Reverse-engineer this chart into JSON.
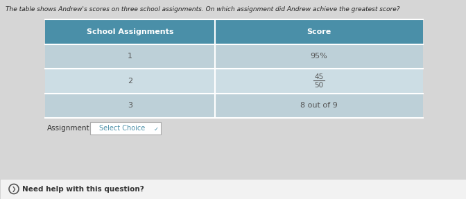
{
  "title": "The table shows Andrew's scores on three school assignments. On which assignment did Andrew achieve the greatest score?",
  "header_col1": "School Assignments",
  "header_col2": "Score",
  "rows": [
    [
      "1",
      "95%"
    ],
    [
      "2",
      "45/50"
    ],
    [
      "3",
      "8 out of 9"
    ]
  ],
  "header_bg": "#4a8fa8",
  "row_bg_odd": "#bdd0d8",
  "row_bg_even": "#ccdde4",
  "border_color": "#ffffff",
  "header_text_color": "#ffffff",
  "cell_text_color": "#555555",
  "assignment_label": "Assignment",
  "select_choice_label": "Select Choice",
  "need_help_label": "Need help with this question?",
  "bg_color": "#d6d6d6",
  "bottom_bar_color": "#f2f2f2",
  "select_border_color": "#aaaaaa",
  "select_text_color": "#4a8fa8"
}
